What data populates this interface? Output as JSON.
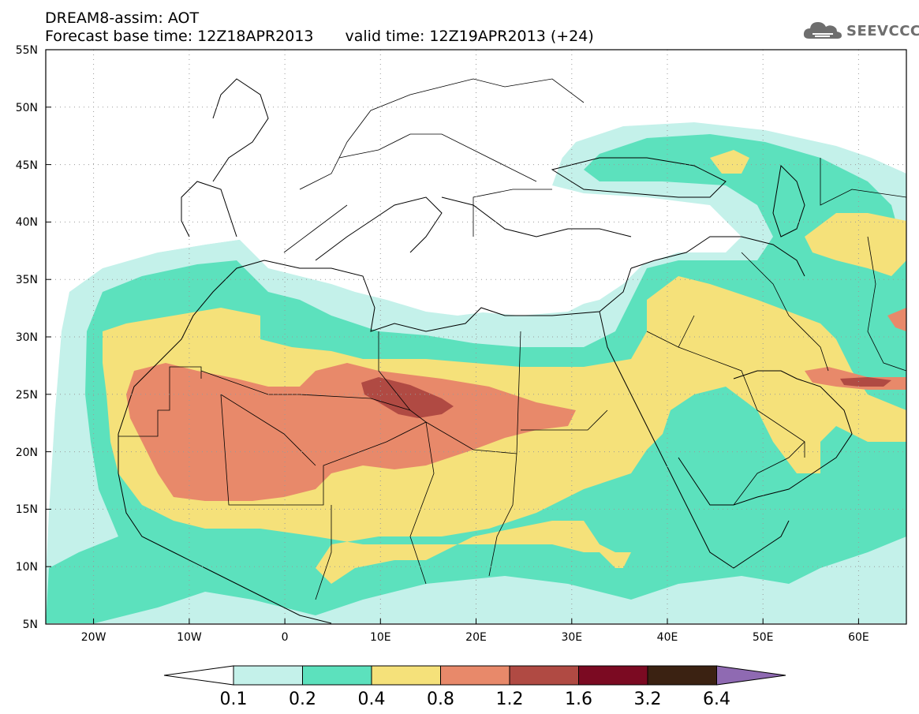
{
  "header": {
    "title_line1": "DREAM8-assim: AOT",
    "base_time": "Forecast base time: 12Z18APR2013",
    "valid_time": "valid time: 12Z19APR2013 (+24)"
  },
  "logo": {
    "text": "SEEVCCC",
    "icon": "cloud-logo-icon"
  },
  "map": {
    "lon_range": [
      -25,
      65
    ],
    "lat_range": [
      5,
      55
    ],
    "lat_ticks": [
      "5N",
      "10N",
      "15N",
      "20N",
      "25N",
      "30N",
      "35N",
      "40N",
      "45N",
      "50N",
      "55N"
    ],
    "lon_ticks": [
      "20W",
      "10W",
      "0",
      "10E",
      "20E",
      "30E",
      "40E",
      "50E",
      "60E"
    ],
    "grid": "dotted"
  },
  "colorbar": {
    "levels": [
      "0.1",
      "0.2",
      "0.4",
      "0.8",
      "1.2",
      "1.6",
      "3.2",
      "6.4"
    ],
    "colors": [
      "#ffffff",
      "#c4f1ea",
      "#5ce1bd",
      "#f5e17a",
      "#e8896a",
      "#b04a43",
      "#7b0a22",
      "#3b2212",
      "#8f6ab2"
    ]
  }
}
